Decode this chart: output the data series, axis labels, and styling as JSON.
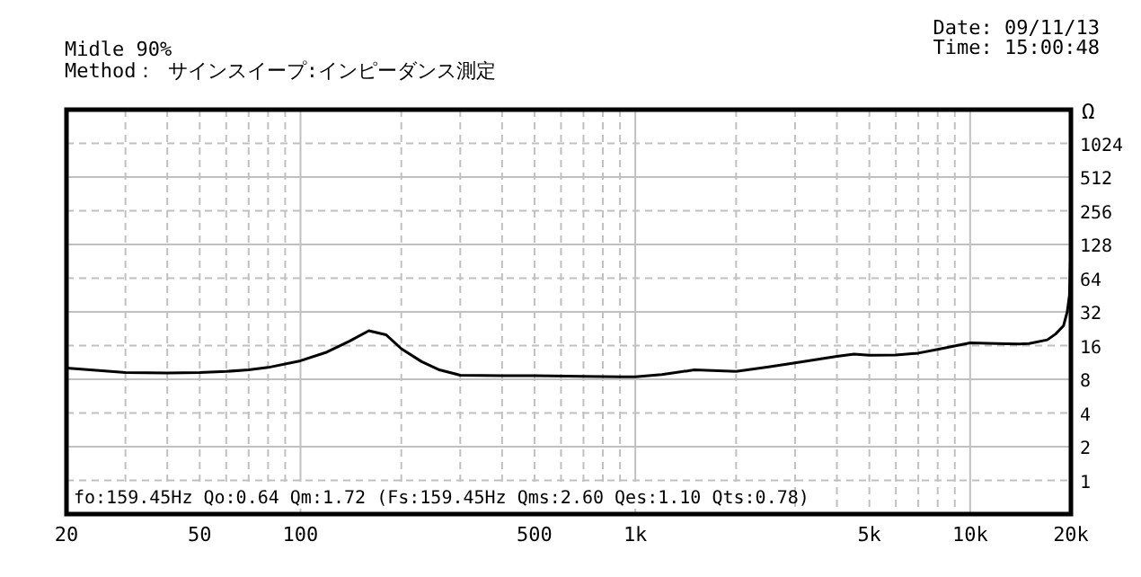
{
  "chart_data": {
    "type": "line",
    "subtitle": "Midle 90%\nMethod： サインスイープ:インピーダンス測定",
    "ylabel": "Ω",
    "annotations": [
      "Date: 09/11/13\nTime: 15:00:48",
      "fo:159.45Hz  Qo:0.64 Qm:1.72 (Fs:159.45Hz  Qms:2.60 Qes:1.10 Qts:0.78)"
    ],
    "log": "xy",
    "grid": true,
    "marker": "none",
    "line_style": "solid",
    "xlim": [
      20,
      20000
    ],
    "ylim": [
      0.5,
      2048
    ],
    "xticks": [
      20,
      {
        "value": 30,
        "label": null
      },
      {
        "value": 40,
        "label": null
      },
      50,
      {
        "value": 60,
        "label": null
      },
      {
        "value": 70,
        "label": null
      },
      {
        "value": 80,
        "label": null
      },
      {
        "value": 90,
        "label": null
      },
      100,
      {
        "value": 200,
        "label": null
      },
      {
        "value": 300,
        "label": null
      },
      {
        "value": 400,
        "label": null
      },
      500,
      {
        "value": 600,
        "label": null
      },
      {
        "value": 700,
        "label": null
      },
      {
        "value": 800,
        "label": null
      },
      {
        "value": 900,
        "label": null
      },
      {
        "value": 1000,
        "label": "1k"
      },
      {
        "value": 2000,
        "label": null
      },
      {
        "value": 3000,
        "label": null
      },
      {
        "value": 4000,
        "label": null
      },
      {
        "value": 5000,
        "label": "5k"
      },
      {
        "value": 6000,
        "label": null
      },
      {
        "value": 7000,
        "label": null
      },
      {
        "value": 8000,
        "label": null
      },
      {
        "value": 9000,
        "label": null
      },
      {
        "value": 10000,
        "label": "10k"
      },
      {
        "value": 20000,
        "label": "20k"
      }
    ],
    "yticks": [
      1,
      2,
      4,
      8,
      16,
      32,
      64,
      128,
      256,
      512,
      1024
    ],
    "series": [
      {
        "color": "#000000",
        "x": [
          20,
          25,
          30,
          40,
          50,
          60,
          70,
          80,
          100,
          120,
          140,
          160,
          180,
          200,
          230,
          260,
          300,
          400,
          500,
          700,
          900,
          1000,
          1200,
          1500,
          2000,
          2500,
          3000,
          4000,
          4500,
          5000,
          6000,
          7000,
          8000,
          10000,
          12000,
          14000,
          15000,
          17000,
          18000,
          19000,
          19500,
          19800,
          20000
        ],
        "values": [
          10.1,
          9.6,
          9.2,
          9.1,
          9.2,
          9.4,
          9.7,
          10.2,
          11.7,
          14,
          17.5,
          21.7,
          20,
          15,
          11.5,
          9.7,
          8.7,
          8.6,
          8.6,
          8.5,
          8.4,
          8.4,
          8.8,
          9.7,
          9.4,
          10.3,
          11.2,
          12.8,
          13.4,
          13.1,
          13.2,
          13.7,
          14.8,
          16.9,
          16.7,
          16.5,
          16.7,
          18,
          20.3,
          24,
          32,
          45,
          128
        ]
      }
    ]
  }
}
